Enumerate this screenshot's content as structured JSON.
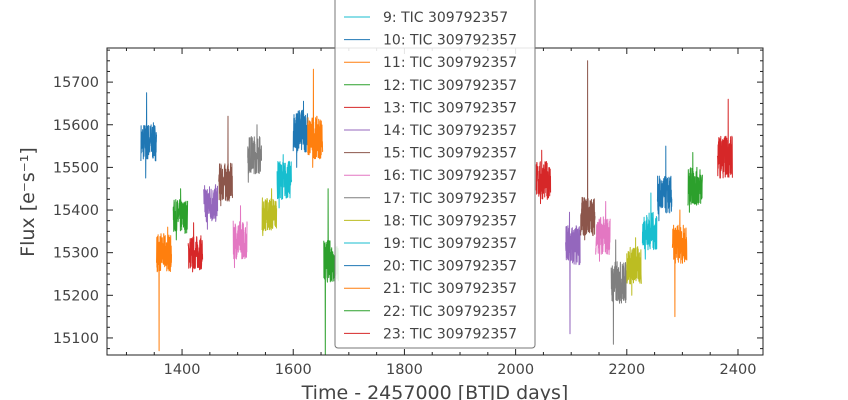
{
  "chart_data": {
    "type": "line",
    "title": "",
    "xlabel": "Time - 2457000 [BTJD days]",
    "ylabel": "Flux [e⁻s⁻¹]",
    "xlim": [
      1265,
      2445
    ],
    "ylim": [
      15060,
      15780
    ],
    "xticks": [
      "1400",
      "1600",
      "1800",
      "2000",
      "2200",
      "2400"
    ],
    "yticks": [
      "15100",
      "15200",
      "15300",
      "15400",
      "15500",
      "15600",
      "15700"
    ],
    "grid": false,
    "legend_position": "top-center",
    "legend": [
      "9: TIC 309792357",
      "10: TIC 309792357",
      "11: TIC 309792357",
      "12: TIC 309792357",
      "13: TIC 309792357",
      "14: TIC 309792357",
      "15: TIC 309792357",
      "16: TIC 309792357",
      "17: TIC 309792357",
      "18: TIC 309792357",
      "19: TIC 309792357",
      "20: TIC 309792357",
      "21: TIC 309792357",
      "22: TIC 309792357",
      "23: TIC 309792357"
    ],
    "segments": [
      {
        "x0": 1326,
        "x1": 1354,
        "y": 15560,
        "spread": 45,
        "max": 15675,
        "min": 15475,
        "color": "#1f77b4"
      },
      {
        "x0": 1354,
        "x1": 1381,
        "y": 15300,
        "spread": 45,
        "max": 15360,
        "min": 15070,
        "color": "#ff7f0e"
      },
      {
        "x0": 1384,
        "x1": 1410,
        "y": 15385,
        "spread": 40,
        "max": 15450,
        "min": 15330,
        "color": "#2ca02c"
      },
      {
        "x0": 1411,
        "x1": 1437,
        "y": 15300,
        "spread": 40,
        "max": 15370,
        "min": 15255,
        "color": "#d62728"
      },
      {
        "x0": 1439,
        "x1": 1464,
        "y": 15415,
        "spread": 45,
        "max": 15475,
        "min": 15355,
        "color": "#9467bd"
      },
      {
        "x0": 1466,
        "x1": 1491,
        "y": 15465,
        "spread": 45,
        "max": 15620,
        "min": 15410,
        "color": "#8c564b"
      },
      {
        "x0": 1492,
        "x1": 1517,
        "y": 15330,
        "spread": 45,
        "max": 15410,
        "min": 15265,
        "color": "#e377c2"
      },
      {
        "x0": 1518,
        "x1": 1543,
        "y": 15530,
        "spread": 45,
        "max": 15600,
        "min": 15465,
        "color": "#7f7f7f"
      },
      {
        "x0": 1544,
        "x1": 1570,
        "y": 15390,
        "spread": 40,
        "max": 15450,
        "min": 15340,
        "color": "#bcbd22"
      },
      {
        "x0": 1571,
        "x1": 1597,
        "y": 15470,
        "spread": 45,
        "max": 15530,
        "min": 15405,
        "color": "#17becf"
      },
      {
        "x0": 1600,
        "x1": 1626,
        "y": 15585,
        "spread": 50,
        "max": 15655,
        "min": 15500,
        "color": "#1f77b4"
      },
      {
        "x0": 1626,
        "x1": 1653,
        "y": 15570,
        "spread": 50,
        "max": 15730,
        "min": 15500,
        "color": "#ff7f0e"
      },
      {
        "x0": 1655,
        "x1": 1681,
        "y": 15280,
        "spread": 50,
        "max": 15450,
        "min": 15060,
        "color": "#2ca02c"
      },
      {
        "x0": 2037,
        "x1": 2063,
        "y": 15470,
        "spread": 45,
        "max": 15540,
        "min": 15415,
        "color": "#d62728"
      },
      {
        "x0": 2090,
        "x1": 2116,
        "y": 15315,
        "spread": 50,
        "max": 15395,
        "min": 15110,
        "color": "#9467bd"
      },
      {
        "x0": 2117,
        "x1": 2143,
        "y": 15385,
        "spread": 45,
        "max": 15750,
        "min": 15330,
        "color": "#8c564b"
      },
      {
        "x0": 2144,
        "x1": 2170,
        "y": 15340,
        "spread": 45,
        "max": 15420,
        "min": 15280,
        "color": "#e377c2"
      },
      {
        "x0": 2172,
        "x1": 2199,
        "y": 15230,
        "spread": 50,
        "max": 15330,
        "min": 15085,
        "color": "#7f7f7f"
      },
      {
        "x0": 2200,
        "x1": 2226,
        "y": 15270,
        "spread": 45,
        "max": 15335,
        "min": 15200,
        "color": "#bcbd22"
      },
      {
        "x0": 2228,
        "x1": 2254,
        "y": 15350,
        "spread": 45,
        "max": 15440,
        "min": 15285,
        "color": "#17becf"
      },
      {
        "x0": 2255,
        "x1": 2281,
        "y": 15435,
        "spread": 45,
        "max": 15550,
        "min": 15375,
        "color": "#1f77b4"
      },
      {
        "x0": 2282,
        "x1": 2308,
        "y": 15320,
        "spread": 45,
        "max": 15400,
        "min": 15150,
        "color": "#ff7f0e"
      },
      {
        "x0": 2310,
        "x1": 2336,
        "y": 15455,
        "spread": 45,
        "max": 15535,
        "min": 15395,
        "color": "#2ca02c"
      },
      {
        "x0": 2363,
        "x1": 2390,
        "y": 15525,
        "spread": 50,
        "max": 15660,
        "min": 15475,
        "color": "#d62728"
      }
    ]
  }
}
